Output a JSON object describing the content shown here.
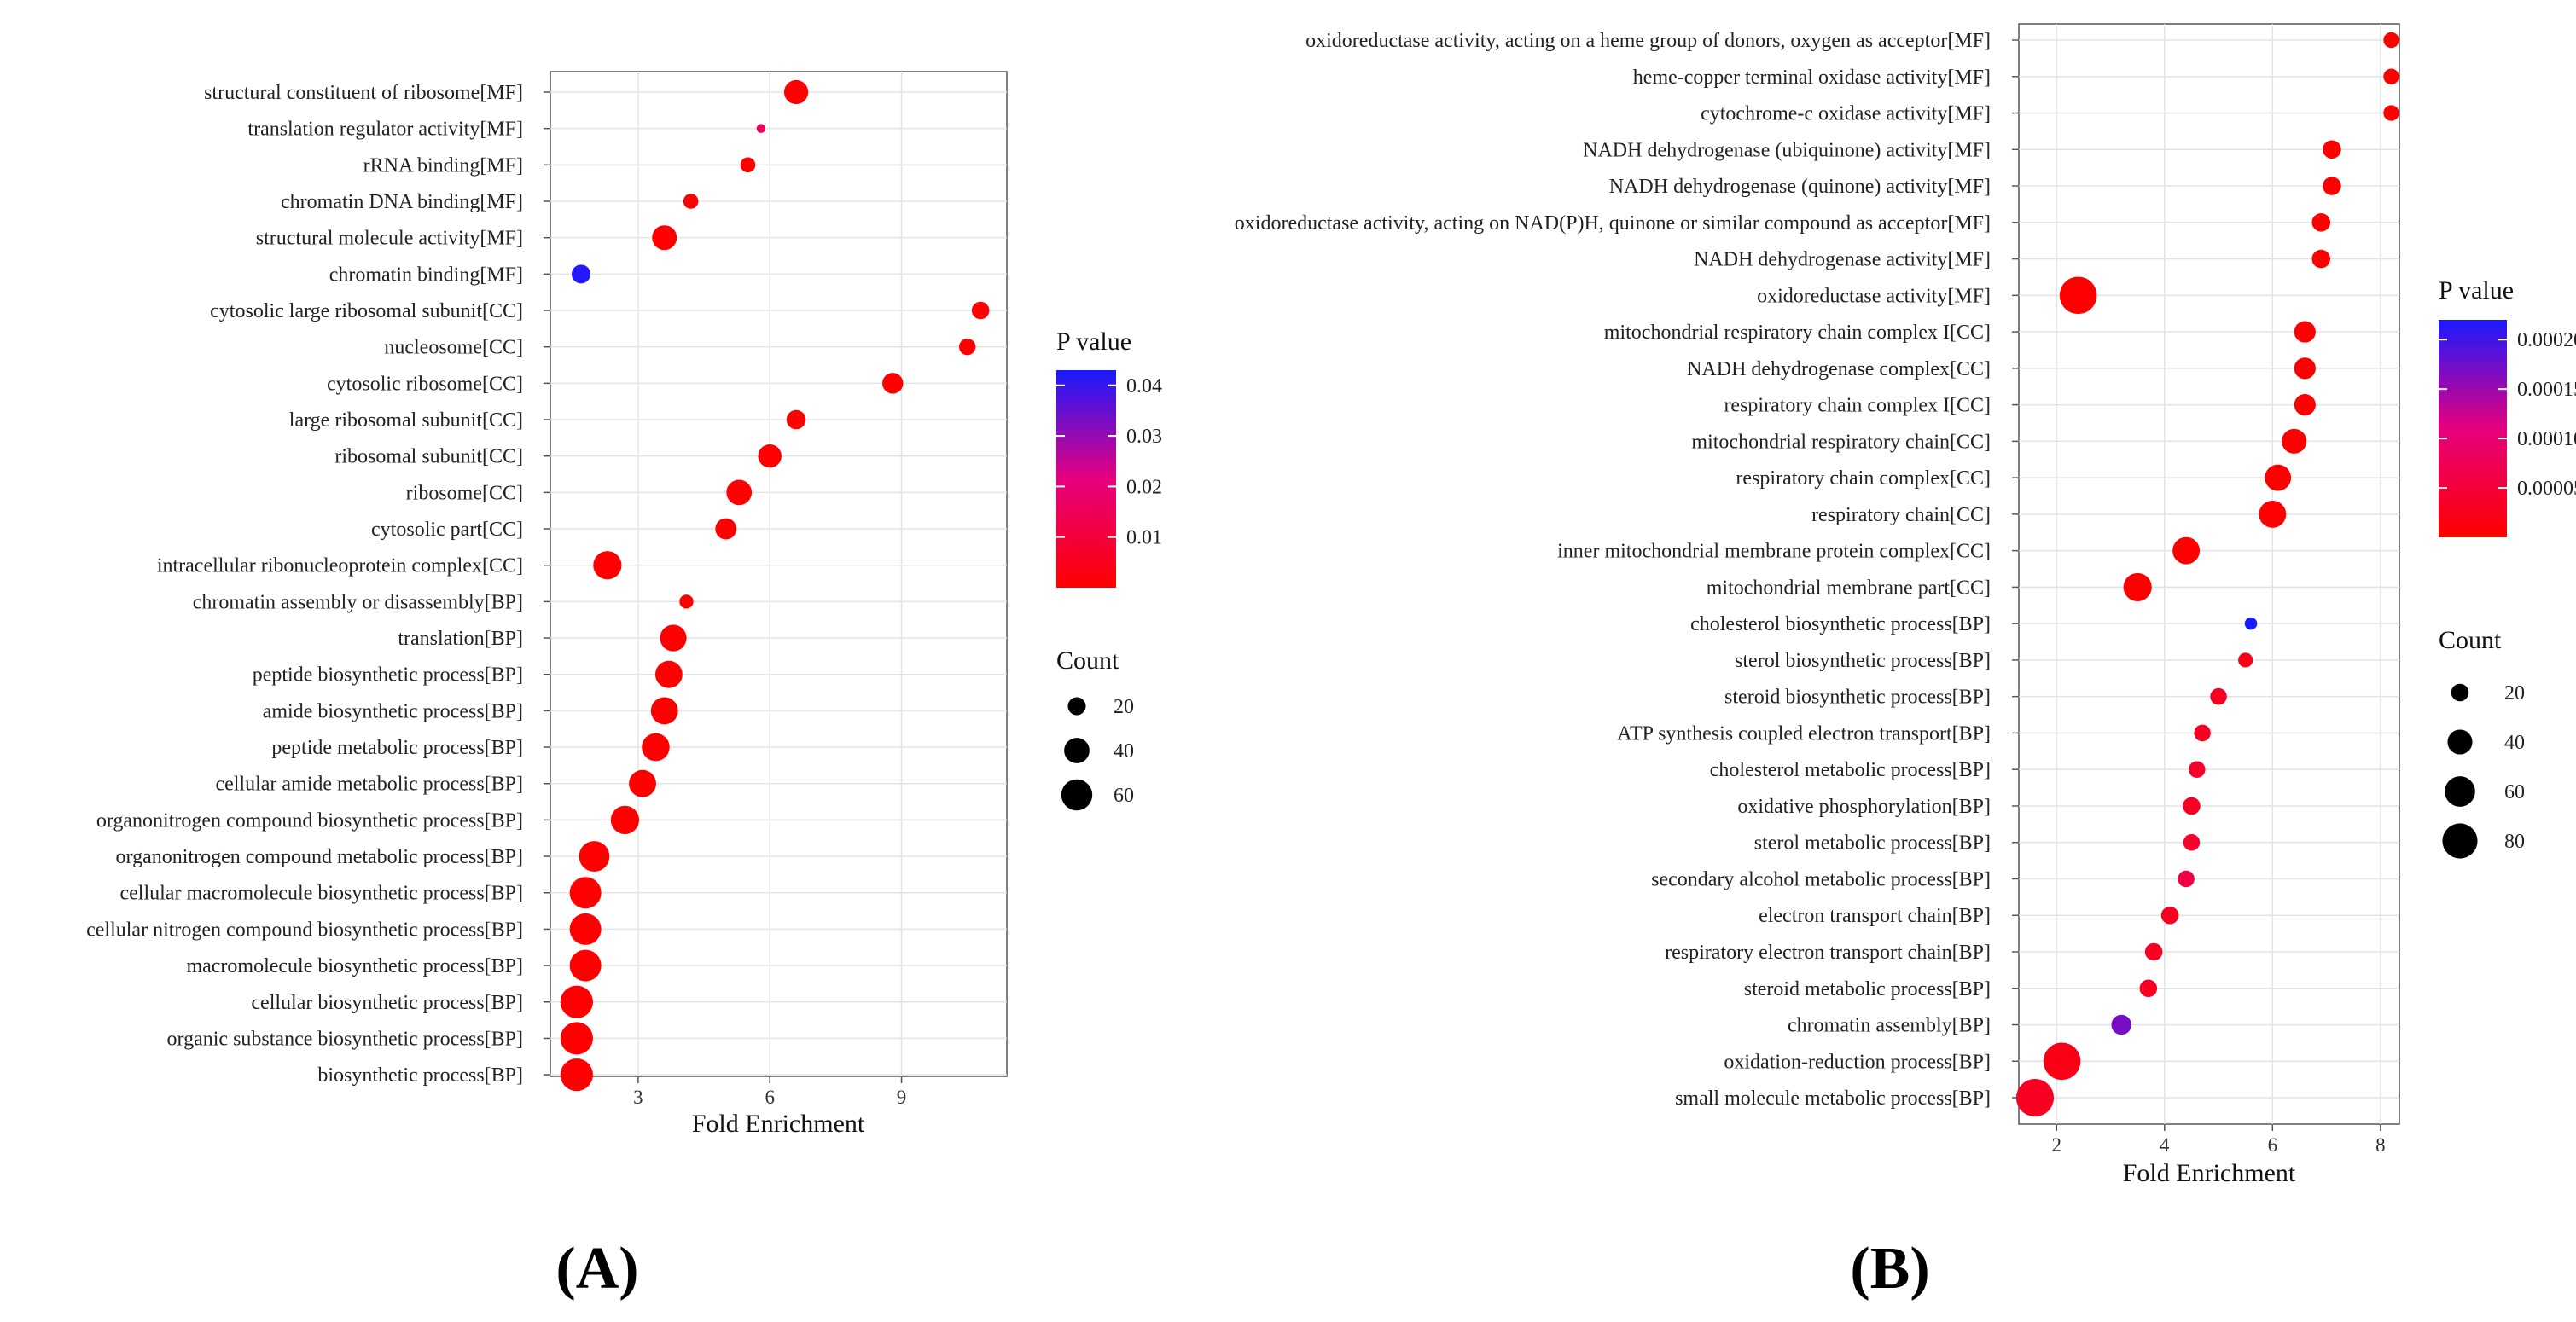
{
  "panels": [
    {
      "label": "(A)"
    },
    {
      "label": "(B)"
    }
  ],
  "chart_data": [
    {
      "type": "scatter",
      "panel": "(A)",
      "xlabel": "Fold Enrichment",
      "x_ticks": [
        "3",
        "6",
        "9"
      ],
      "xlim": [
        1.0,
        11.4
      ],
      "terms": [
        "structural constituent of ribosome[MF]",
        "translation regulator activity[MF]",
        "rRNA binding[MF]",
        "chromatin DNA binding[MF]",
        "structural molecule activity[MF]",
        "chromatin binding[MF]",
        "cytosolic large ribosomal subunit[CC]",
        "nucleosome[CC]",
        "cytosolic ribosome[CC]",
        "large ribosomal subunit[CC]",
        "ribosomal subunit[CC]",
        "ribosome[CC]",
        "cytosolic part[CC]",
        "intracellular ribonucleoprotein complex[CC]",
        "chromatin assembly or disassembly[BP]",
        "translation[BP]",
        "peptide biosynthetic process[BP]",
        "amide biosynthetic process[BP]",
        "peptide metabolic process[BP]",
        "cellular amide metabolic process[BP]",
        "organonitrogen compound biosynthetic process[BP]",
        "organonitrogen compound metabolic process[BP]",
        "cellular macromolecule biosynthetic process[BP]",
        "cellular nitrogen compound biosynthetic process[BP]",
        "macromolecule biosynthetic process[BP]",
        "cellular biosynthetic process[BP]",
        "organic substance biosynthetic process[BP]",
        "biosynthetic process[BP]"
      ],
      "fold_enrichment": [
        6.6,
        5.8,
        5.5,
        4.2,
        3.6,
        1.7,
        10.8,
        10.5,
        8.8,
        6.6,
        6.0,
        5.3,
        5.0,
        2.3,
        4.1,
        3.8,
        3.7,
        3.6,
        3.4,
        3.1,
        2.7,
        2.0,
        1.8,
        1.8,
        1.8,
        1.6,
        1.6,
        1.6
      ],
      "count": [
        36,
        5,
        14,
        14,
        38,
        22,
        19,
        17,
        27,
        23,
        34,
        40,
        28,
        50,
        12,
        44,
        46,
        46,
        48,
        46,
        50,
        58,
        62,
        62,
        62,
        66,
        66,
        66
      ],
      "p_value": [
        0.0,
        0.015,
        0.0,
        0.0,
        0.0,
        0.042,
        0.0,
        0.0,
        0.0,
        0.0,
        0.0,
        0.0,
        0.0,
        0.0,
        0.0,
        0.0,
        0.0,
        0.0,
        0.0,
        0.0,
        0.0,
        0.0,
        0.0,
        0.0,
        0.0,
        0.0,
        0.0,
        0.0
      ],
      "legend_pvalue": {
        "title": "P value",
        "ticks": [
          "0.04",
          "0.03",
          "0.02",
          "0.01"
        ],
        "tick_values": [
          0.04,
          0.03,
          0.02,
          0.01
        ],
        "max": 0.043
      },
      "legend_count": {
        "title": "Count",
        "labels": [
          "20",
          "40",
          "60"
        ],
        "values": [
          20,
          40,
          60
        ]
      },
      "grid": true,
      "colors": {
        "low": "#ff0000",
        "mid": "#e6007e",
        "high": "#1a1aff"
      }
    },
    {
      "type": "scatter",
      "panel": "(B)",
      "xlabel": "Fold Enrichment",
      "x_ticks": [
        "2",
        "4",
        "6",
        "8"
      ],
      "xlim": [
        1.3,
        8.35
      ],
      "terms": [
        "oxidoreductase activity, acting on a heme group of donors, oxygen as acceptor[MF]",
        "heme-copper terminal oxidase activity[MF]",
        "cytochrome-c oxidase activity[MF]",
        "NADH dehydrogenase (ubiquinone) activity[MF]",
        "NADH dehydrogenase (quinone) activity[MF]",
        "oxidoreductase activity, acting on NAD(P)H, quinone or similar compound as acceptor[MF]",
        "NADH dehydrogenase activity[MF]",
        "oxidoreductase activity[MF]",
        "mitochondrial respiratory chain complex I[CC]",
        "NADH dehydrogenase complex[CC]",
        "respiratory chain complex I[CC]",
        "mitochondrial respiratory chain[CC]",
        "respiratory chain complex[CC]",
        "respiratory chain[CC]",
        "inner mitochondrial membrane protein complex[CC]",
        "mitochondrial membrane part[CC]",
        "cholesterol biosynthetic process[BP]",
        "sterol biosynthetic process[BP]",
        "steroid biosynthetic process[BP]",
        "ATP synthesis coupled electron transport[BP]",
        "cholesterol metabolic process[BP]",
        "oxidative phosphorylation[BP]",
        "sterol metabolic process[BP]",
        "secondary alcohol metabolic process[BP]",
        "electron transport chain[BP]",
        "respiratory electron transport chain[BP]",
        "steroid metabolic process[BP]",
        "chromatin assembly[BP]",
        "oxidation-reduction process[BP]",
        "small molecule metabolic process[BP]"
      ],
      "fold_enrichment": [
        8.2,
        8.2,
        8.2,
        7.1,
        7.1,
        6.9,
        6.9,
        2.4,
        6.6,
        6.6,
        6.6,
        6.4,
        6.1,
        6.0,
        4.4,
        3.5,
        5.6,
        5.5,
        5.0,
        4.7,
        4.6,
        4.5,
        4.5,
        4.4,
        4.1,
        3.8,
        3.7,
        3.2,
        2.1,
        1.6
      ],
      "count": [
        16,
        16,
        16,
        22,
        22,
        22,
        22,
        90,
        30,
        30,
        30,
        40,
        45,
        48,
        48,
        52,
        10,
        14,
        18,
        18,
        18,
        20,
        18,
        18,
        20,
        20,
        20,
        26,
        90,
        92
      ],
      "p_value": [
        0.0,
        0.0,
        0.0,
        0.0,
        0.0,
        0.0,
        0.0,
        0.0,
        0.0,
        0.0,
        0.0,
        0.0,
        0.0,
        0.0,
        0.0,
        0.0,
        0.00022,
        2e-05,
        3e-05,
        3e-05,
        4e-05,
        3e-05,
        4e-05,
        6e-05,
        3e-05,
        3e-05,
        3e-05,
        0.00017,
        2e-05,
        3e-05
      ],
      "legend_pvalue": {
        "title": "P value",
        "ticks": [
          "0.00020",
          "0.00015",
          "0.00010",
          "0.00005"
        ],
        "tick_values": [
          0.0002,
          0.00015,
          0.0001,
          5e-05
        ],
        "max": 0.00022
      },
      "legend_count": {
        "title": "Count",
        "labels": [
          "20",
          "40",
          "60",
          "80"
        ],
        "values": [
          20,
          40,
          60,
          80
        ]
      },
      "grid": true,
      "colors": {
        "low": "#ff0000",
        "mid": "#e6007e",
        "high": "#1a1aff"
      }
    }
  ]
}
